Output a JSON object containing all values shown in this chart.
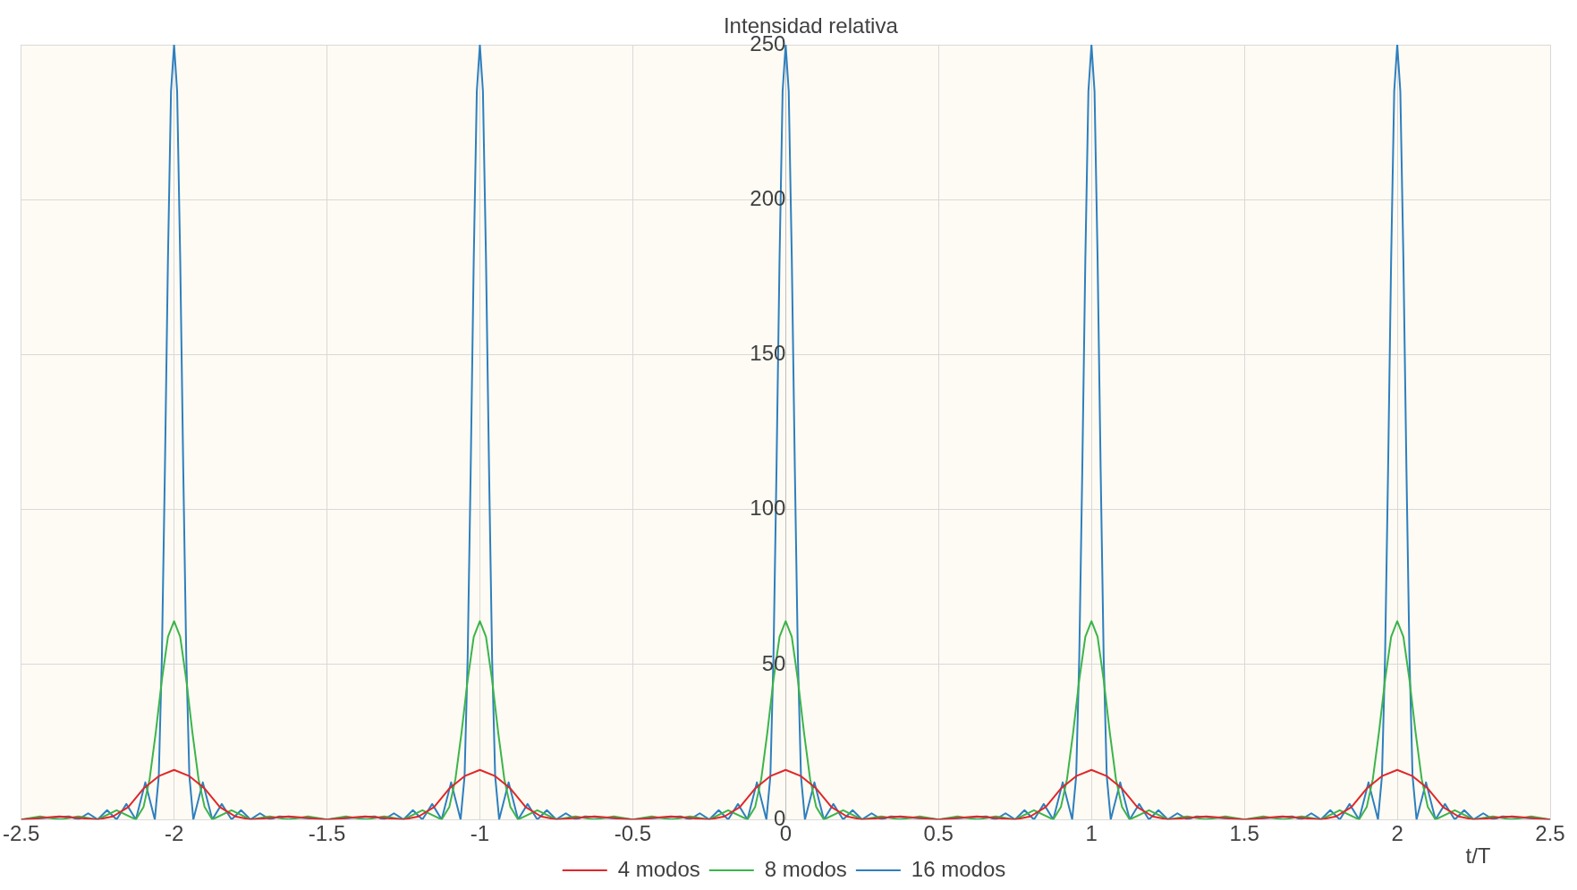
{
  "chart_data": {
    "type": "line",
    "ylabel": "Intensidad relativa",
    "xlabel": "t/T",
    "xlim": [
      -2.5,
      2.5
    ],
    "xticks": [
      -2.5,
      -2,
      -1.5,
      -1,
      -0.5,
      0,
      0.5,
      1,
      1.5,
      2,
      2.5
    ],
    "ylim": [
      0,
      250
    ],
    "yticks": [
      0,
      50,
      100,
      150,
      200,
      250
    ],
    "grid": true,
    "legend": "bottom",
    "marker": "none",
    "line_style": "solid",
    "series": [
      {
        "name": "4 modos",
        "color": "#e0272b",
        "x": [
          -2.5,
          -2.375,
          -2.25,
          -2.2,
          -2.15,
          -2.1,
          -2.05,
          -2,
          -1.95,
          -1.9,
          -1.85,
          -1.8,
          -1.75,
          -1.625,
          -1.5,
          -1.375,
          -1.25,
          -1.2,
          -1.15,
          -1.1,
          -1.05,
          -1,
          -0.95,
          -0.9,
          -0.85,
          -0.8,
          -0.75,
          -0.625,
          -0.5,
          -0.375,
          -0.25,
          -0.2,
          -0.15,
          -0.1,
          -0.05,
          0,
          0.05,
          0.1,
          0.15,
          0.2,
          0.25,
          0.375,
          0.5,
          0.625,
          0.75,
          0.8,
          0.85,
          0.9,
          0.95,
          1,
          1.05,
          1.1,
          1.15,
          1.2,
          1.25,
          1.375,
          1.5,
          1.625,
          1.75,
          1.8,
          1.85,
          1.9,
          1.95,
          2,
          2.05,
          2.1,
          2.15,
          2.2,
          2.25,
          2.375,
          2.5
        ],
        "values": [
          0,
          1,
          0,
          1,
          4,
          10,
          14,
          16,
          14,
          10,
          4,
          1,
          0,
          1,
          0,
          1,
          0,
          1,
          4,
          10,
          14,
          16,
          14,
          10,
          4,
          1,
          0,
          1,
          0,
          1,
          0,
          1,
          4,
          10,
          14,
          16,
          14,
          10,
          4,
          1,
          0,
          1,
          0,
          1,
          0,
          1,
          4,
          10,
          14,
          16,
          14,
          10,
          4,
          1,
          0,
          1,
          0,
          1,
          0,
          1,
          4,
          10,
          14,
          16,
          14,
          10,
          4,
          1,
          0,
          1,
          0
        ]
      },
      {
        "name": "8 modos",
        "color": "#3cb44b",
        "x": [
          -2.5,
          -2.438,
          -2.375,
          -2.313,
          -2.25,
          -2.188,
          -2.125,
          -2.1,
          -2.08,
          -2.06,
          -2.04,
          -2.02,
          -2,
          -1.98,
          -1.96,
          -1.94,
          -1.92,
          -1.9,
          -1.875,
          -1.812,
          -1.75,
          -1.687,
          -1.625,
          -1.562,
          -1.5,
          -1.438,
          -1.375,
          -1.313,
          -1.25,
          -1.188,
          -1.125,
          -1.1,
          -1.08,
          -1.06,
          -1.04,
          -1.02,
          -1,
          -0.98,
          -0.96,
          -0.94,
          -0.92,
          -0.9,
          -0.875,
          -0.812,
          -0.75,
          -0.687,
          -0.625,
          -0.562,
          -0.5,
          -0.438,
          -0.375,
          -0.313,
          -0.25,
          -0.188,
          -0.125,
          -0.1,
          -0.08,
          -0.06,
          -0.04,
          -0.02,
          0,
          0.02,
          0.04,
          0.06,
          0.08,
          0.1,
          0.125,
          0.188,
          0.25,
          0.313,
          0.375,
          0.438,
          0.5,
          0.562,
          0.625,
          0.687,
          0.75,
          0.812,
          0.875,
          0.9,
          0.92,
          0.94,
          0.96,
          0.98,
          1,
          1.02,
          1.04,
          1.06,
          1.08,
          1.1,
          1.125,
          1.188,
          1.25,
          1.313,
          1.375,
          1.438,
          1.5,
          1.562,
          1.625,
          1.687,
          1.75,
          1.812,
          1.875,
          1.9,
          1.92,
          1.94,
          1.96,
          1.98,
          2,
          2.02,
          2.04,
          2.06,
          2.08,
          2.1,
          2.125,
          2.188,
          2.25,
          2.313,
          2.375,
          2.438,
          2.5
        ],
        "values": [
          0,
          1,
          0,
          1,
          0,
          3,
          0,
          4,
          13,
          28,
          45,
          59,
          64,
          59,
          45,
          28,
          13,
          4,
          0,
          3,
          0,
          1,
          0,
          1,
          0,
          1,
          0,
          1,
          0,
          3,
          0,
          4,
          13,
          28,
          45,
          59,
          64,
          59,
          45,
          28,
          13,
          4,
          0,
          3,
          0,
          1,
          0,
          1,
          0,
          1,
          0,
          1,
          0,
          3,
          0,
          4,
          13,
          28,
          45,
          59,
          64,
          59,
          45,
          28,
          13,
          4,
          0,
          3,
          0,
          1,
          0,
          1,
          0,
          1,
          0,
          1,
          0,
          3,
          0,
          4,
          13,
          28,
          45,
          59,
          64,
          59,
          45,
          28,
          13,
          4,
          0,
          3,
          0,
          1,
          0,
          1,
          0,
          1,
          0,
          1,
          0,
          3,
          0,
          4,
          13,
          28,
          45,
          59,
          64,
          59,
          45,
          28,
          13,
          4,
          0,
          3,
          0,
          1,
          0,
          1,
          0
        ]
      },
      {
        "name": "16 modos",
        "color": "#2e7fbf",
        "x": [
          -2.5,
          -2.344,
          -2.313,
          -2.281,
          -2.25,
          -2.219,
          -2.188,
          -2.156,
          -2.125,
          -2.094,
          -2.063,
          -2.05,
          -2.04,
          -2.03,
          -2.02,
          -2.01,
          -2,
          -1.99,
          -1.98,
          -1.97,
          -1.96,
          -1.95,
          -1.937,
          -1.906,
          -1.875,
          -1.844,
          -1.812,
          -1.781,
          -1.75,
          -1.719,
          -1.687,
          -1.656,
          -1.5,
          -1.344,
          -1.313,
          -1.281,
          -1.25,
          -1.219,
          -1.188,
          -1.156,
          -1.125,
          -1.094,
          -1.063,
          -1.05,
          -1.04,
          -1.03,
          -1.02,
          -1.01,
          -1,
          -0.99,
          -0.98,
          -0.97,
          -0.96,
          -0.95,
          -0.937,
          -0.906,
          -0.875,
          -0.844,
          -0.812,
          -0.781,
          -0.75,
          -0.719,
          -0.687,
          -0.656,
          -0.5,
          -0.344,
          -0.313,
          -0.281,
          -0.25,
          -0.219,
          -0.188,
          -0.156,
          -0.125,
          -0.094,
          -0.063,
          -0.05,
          -0.04,
          -0.03,
          -0.02,
          -0.01,
          0,
          0.01,
          0.02,
          0.03,
          0.04,
          0.05,
          0.063,
          0.094,
          0.125,
          0.156,
          0.188,
          0.219,
          0.25,
          0.281,
          0.313,
          0.344,
          0.5,
          0.656,
          0.687,
          0.719,
          0.75,
          0.781,
          0.812,
          0.844,
          0.875,
          0.906,
          0.937,
          0.95,
          0.96,
          0.97,
          0.98,
          0.99,
          1,
          1.01,
          1.02,
          1.03,
          1.04,
          1.05,
          1.063,
          1.094,
          1.125,
          1.156,
          1.188,
          1.219,
          1.25,
          1.281,
          1.313,
          1.344,
          1.5,
          1.656,
          1.687,
          1.719,
          1.75,
          1.781,
          1.812,
          1.844,
          1.875,
          1.906,
          1.937,
          1.95,
          1.96,
          1.97,
          1.98,
          1.99,
          2,
          2.01,
          2.02,
          2.03,
          2.04,
          2.05,
          2.063,
          2.094,
          2.125,
          2.156,
          2.188,
          2.219,
          2.25,
          2.281,
          2.313,
          2.344,
          2.5
        ],
        "values": [
          0,
          1,
          0,
          2,
          0,
          3,
          0,
          5,
          0,
          12,
          0,
          14,
          52,
          113,
          181,
          235,
          250,
          235,
          181,
          113,
          52,
          14,
          0,
          12,
          0,
          5,
          0,
          3,
          0,
          2,
          0,
          1,
          0,
          1,
          0,
          2,
          0,
          3,
          0,
          5,
          0,
          12,
          0,
          14,
          52,
          113,
          181,
          235,
          250,
          235,
          181,
          113,
          52,
          14,
          0,
          12,
          0,
          5,
          0,
          3,
          0,
          2,
          0,
          1,
          0,
          1,
          0,
          2,
          0,
          3,
          0,
          5,
          0,
          12,
          0,
          14,
          52,
          113,
          181,
          235,
          250,
          235,
          181,
          113,
          52,
          14,
          0,
          12,
          0,
          5,
          0,
          3,
          0,
          2,
          0,
          1,
          0,
          1,
          0,
          2,
          0,
          3,
          0,
          5,
          0,
          12,
          0,
          14,
          52,
          113,
          181,
          235,
          250,
          235,
          181,
          113,
          52,
          14,
          0,
          12,
          0,
          5,
          0,
          3,
          0,
          2,
          0,
          1,
          0,
          1,
          0,
          2,
          0,
          3,
          0,
          5,
          0,
          12,
          0,
          14,
          52,
          113,
          181,
          235,
          250,
          235,
          181,
          113,
          52,
          14,
          0,
          12,
          0,
          5,
          0,
          3,
          0,
          2,
          0,
          1,
          0
        ]
      }
    ]
  }
}
